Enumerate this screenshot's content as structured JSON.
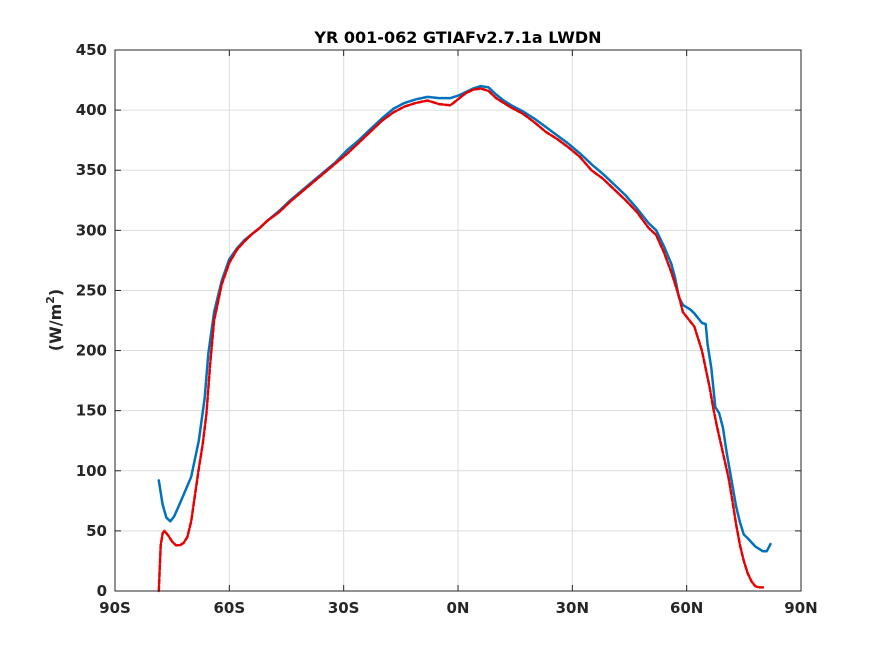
{
  "chart_data": {
    "type": "line",
    "title": "YR 001-062 GTIAFv2.7.1a LWDN",
    "xlabel": "",
    "ylabel": "(W/m",
    "ylabel_sup": "2",
    "ylabel_close": ")",
    "xlim": [
      -90,
      90
    ],
    "ylim": [
      0,
      450
    ],
    "xticks": [
      -90,
      -60,
      -30,
      0,
      30,
      60,
      90
    ],
    "xtick_labels": [
      "90S",
      "60S",
      "30S",
      "0N",
      "30N",
      "60N",
      "90N"
    ],
    "yticks": [
      0,
      50,
      100,
      150,
      200,
      250,
      300,
      350,
      400,
      450
    ],
    "ytick_labels": [
      "0",
      "50",
      "100",
      "150",
      "200",
      "250",
      "300",
      "350",
      "400",
      "450"
    ],
    "grid": true,
    "legend": "none",
    "series": [
      {
        "color": "#0072bd",
        "style": "solid",
        "points": [
          [
            -78.5,
            92
          ],
          [
            -77.5,
            72
          ],
          [
            -76.5,
            61
          ],
          [
            -75.5,
            58
          ],
          [
            -74.5,
            62
          ],
          [
            -73.5,
            69
          ],
          [
            -72,
            80
          ],
          [
            -70,
            95
          ],
          [
            -68,
            125
          ],
          [
            -66.5,
            160
          ],
          [
            -65.5,
            198
          ],
          [
            -64,
            232
          ],
          [
            -62,
            258
          ],
          [
            -60,
            276
          ],
          [
            -58,
            285
          ],
          [
            -56,
            292
          ],
          [
            -54,
            297
          ],
          [
            -52,
            302
          ],
          [
            -50,
            308
          ],
          [
            -47,
            316
          ],
          [
            -44,
            325
          ],
          [
            -41,
            333
          ],
          [
            -38,
            341
          ],
          [
            -35,
            349
          ],
          [
            -32,
            357
          ],
          [
            -29,
            367
          ],
          [
            -26,
            375
          ],
          [
            -23,
            384
          ],
          [
            -20,
            393
          ],
          [
            -17,
            401
          ],
          [
            -14,
            406
          ],
          [
            -11,
            409
          ],
          [
            -8,
            411
          ],
          [
            -5,
            410
          ],
          [
            -2,
            410
          ],
          [
            0,
            412
          ],
          [
            2,
            415
          ],
          [
            4,
            418
          ],
          [
            6,
            420
          ],
          [
            8,
            419
          ],
          [
            10,
            413
          ],
          [
            12,
            408
          ],
          [
            14,
            404
          ],
          [
            17,
            399
          ],
          [
            20,
            393
          ],
          [
            23,
            386
          ],
          [
            26,
            379
          ],
          [
            29,
            372
          ],
          [
            32,
            364
          ],
          [
            35,
            355
          ],
          [
            38,
            347
          ],
          [
            41,
            338
          ],
          [
            44,
            329
          ],
          [
            47,
            318
          ],
          [
            50,
            306
          ],
          [
            52,
            300
          ],
          [
            54,
            287
          ],
          [
            56,
            272
          ],
          [
            57,
            260
          ],
          [
            58,
            244
          ],
          [
            59,
            238
          ],
          [
            61,
            234
          ],
          [
            62,
            231
          ],
          [
            64,
            223
          ],
          [
            65,
            222
          ],
          [
            65.5,
            205
          ],
          [
            66.5,
            185
          ],
          [
            67.5,
            153
          ],
          [
            68.5,
            148
          ],
          [
            69.5,
            136
          ],
          [
            70.5,
            115
          ],
          [
            72,
            88
          ],
          [
            73,
            70
          ],
          [
            74,
            57
          ],
          [
            75,
            47
          ],
          [
            76,
            44
          ],
          [
            78,
            37
          ],
          [
            80,
            33
          ],
          [
            81,
            33
          ],
          [
            82,
            39
          ]
        ]
      },
      {
        "color": "#e60000",
        "style": "dashed",
        "points": [
          [
            -78.5,
            0
          ],
          [
            -78,
            38
          ],
          [
            -77.5,
            48
          ],
          [
            -77,
            50
          ],
          [
            -76,
            46
          ],
          [
            -75,
            41
          ],
          [
            -74,
            38
          ],
          [
            -73,
            38
          ],
          [
            -72,
            40
          ],
          [
            -71,
            45
          ],
          [
            -70,
            58
          ],
          [
            -69,
            80
          ],
          [
            -68,
            102
          ],
          [
            -67,
            122
          ],
          [
            -66,
            148
          ],
          [
            -65,
            190
          ],
          [
            -64,
            225
          ],
          [
            -62,
            255
          ],
          [
            -60,
            273
          ],
          [
            -58,
            284
          ],
          [
            -56,
            291
          ],
          [
            -54,
            297
          ],
          [
            -52,
            302
          ],
          [
            -50,
            308
          ],
          [
            -47,
            315
          ],
          [
            -44,
            324
          ],
          [
            -41,
            332
          ],
          [
            -38,
            340
          ],
          [
            -35,
            348
          ],
          [
            -32,
            356
          ],
          [
            -29,
            364
          ],
          [
            -26,
            373
          ],
          [
            -23,
            382
          ],
          [
            -20,
            391
          ],
          [
            -17,
            398
          ],
          [
            -14,
            403
          ],
          [
            -11,
            406
          ],
          [
            -8,
            408
          ],
          [
            -5,
            405
          ],
          [
            -2,
            404
          ],
          [
            0,
            409
          ],
          [
            2,
            414
          ],
          [
            4,
            417
          ],
          [
            6,
            418
          ],
          [
            8,
            416
          ],
          [
            10,
            410
          ],
          [
            12,
            406
          ],
          [
            14,
            402
          ],
          [
            17,
            397
          ],
          [
            20,
            390
          ],
          [
            23,
            382
          ],
          [
            26,
            376
          ],
          [
            29,
            369
          ],
          [
            32,
            361
          ],
          [
            35,
            350
          ],
          [
            38,
            343
          ],
          [
            41,
            334
          ],
          [
            44,
            325
          ],
          [
            47,
            315
          ],
          [
            50,
            302
          ],
          [
            52,
            296
          ],
          [
            54,
            282
          ],
          [
            56,
            265
          ],
          [
            58,
            245
          ],
          [
            59,
            232
          ],
          [
            60,
            228
          ],
          [
            62,
            220
          ],
          [
            63,
            210
          ],
          [
            64,
            200
          ],
          [
            65,
            185
          ],
          [
            66,
            170
          ],
          [
            67,
            152
          ],
          [
            68,
            136
          ],
          [
            69,
            122
          ],
          [
            70,
            108
          ],
          [
            71,
            94
          ],
          [
            72,
            75
          ],
          [
            73,
            55
          ],
          [
            74,
            38
          ],
          [
            75,
            25
          ],
          [
            76,
            15
          ],
          [
            77,
            8
          ],
          [
            78,
            4
          ],
          [
            79,
            3
          ],
          [
            80,
            3
          ]
        ]
      }
    ]
  }
}
